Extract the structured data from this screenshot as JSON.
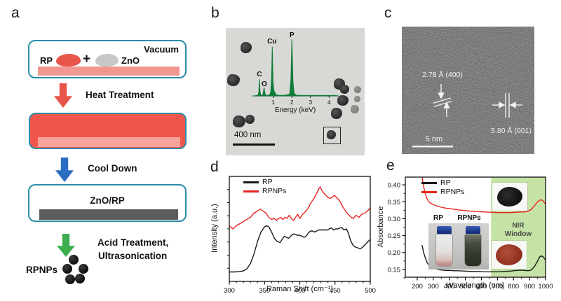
{
  "panels": {
    "a": {
      "label": "a",
      "vacuum": "Vacuum",
      "rp": "RP",
      "plus": "+",
      "zno": "ZnO",
      "step1": "Heat Treatment",
      "step2": "Cool Down",
      "box3": "ZnO/RP",
      "step3a": "Acid Treatment,",
      "step3b": "Ultrasonication",
      "product": "RPNPs"
    },
    "b": {
      "label": "b",
      "scalebar": "400 nm"
    },
    "c": {
      "label": "c",
      "spacing1": "2.78 Å (400)",
      "spacing2": "5.80 Å (001)",
      "scalebar": "5 nm"
    },
    "d": {
      "label": "d"
    },
    "e": {
      "label": "e",
      "nir_line1": "NIR",
      "nir_line2": "Window",
      "vial_left": "RP",
      "vial_right": "RPNPs"
    }
  },
  "colors": {
    "teal_border": "#2b8ca8",
    "red_fill": "#f0564c",
    "pink_slab": "#f0978f",
    "inner_slab": "#f7a39b",
    "gray_blob": "#c8c8c8",
    "dark_slab": "#5c5c5c",
    "red_arrow": "#e8564b",
    "blue_arrow": "#2b6dc0",
    "green_arrow": "#3eae4f",
    "eds_green": "#0f7d39",
    "nir_band": "#c4e3a4",
    "series_black": "#1a1a1a",
    "series_red": "#e8231f"
  },
  "chart_data": [
    {
      "id": "eds",
      "type": "line",
      "panel": "b",
      "xlabel": "Energy (keV)",
      "x_ticks": [
        1,
        2,
        3,
        4
      ],
      "xlim": [
        0,
        4.4
      ],
      "ylim": [
        0,
        95
      ],
      "peak_labels": [
        {
          "text": "C",
          "kev": 0.26
        },
        {
          "text": "O",
          "kev": 0.52
        },
        {
          "text": "Cu",
          "kev": 0.93
        },
        {
          "text": "P",
          "kev": 2.0
        }
      ],
      "series": [
        {
          "name": "EDS counts",
          "color": "#0f7d39",
          "points": [
            [
              0.08,
              0.5
            ],
            [
              0.18,
              0.8
            ],
            [
              0.23,
              6
            ],
            [
              0.26,
              26
            ],
            [
              0.29,
              8
            ],
            [
              0.33,
              1
            ],
            [
              0.44,
              1.2
            ],
            [
              0.48,
              7
            ],
            [
              0.51,
              13
            ],
            [
              0.55,
              5
            ],
            [
              0.6,
              0.8
            ],
            [
              0.78,
              1
            ],
            [
              0.86,
              5
            ],
            [
              0.91,
              25
            ],
            [
              0.95,
              77
            ],
            [
              0.99,
              22
            ],
            [
              1.04,
              8
            ],
            [
              1.1,
              5
            ],
            [
              1.16,
              1.5
            ],
            [
              1.35,
              0.8
            ],
            [
              1.6,
              0.8
            ],
            [
              1.78,
              2
            ],
            [
              1.88,
              2.5
            ],
            [
              1.95,
              25
            ],
            [
              2.0,
              88
            ],
            [
              2.06,
              22
            ],
            [
              2.12,
              4
            ],
            [
              2.25,
              1
            ],
            [
              2.6,
              0.7
            ],
            [
              3.0,
              0.7
            ],
            [
              3.5,
              0.7
            ],
            [
              4.0,
              0.7
            ],
            [
              4.4,
              0.7
            ]
          ]
        }
      ]
    },
    {
      "id": "raman",
      "type": "line",
      "panel": "d",
      "xlabel": "Raman Shift (cm⁻¹)",
      "ylabel": "Intensity (a.u.)",
      "xlim": [
        300,
        500
      ],
      "ylim": [
        0,
        1
      ],
      "x_ticks": [
        300,
        350,
        400,
        450,
        500
      ],
      "x_minor_step": 10,
      "legend_position": "top-left",
      "series": [
        {
          "name": "RP",
          "color": "#1a1a1a",
          "points": [
            [
              300,
              0.09
            ],
            [
              308,
              0.09
            ],
            [
              315,
              0.095
            ],
            [
              320,
              0.1
            ],
            [
              325,
              0.12
            ],
            [
              330,
              0.17
            ],
            [
              335,
              0.26
            ],
            [
              340,
              0.38
            ],
            [
              345,
              0.47
            ],
            [
              350,
              0.52
            ],
            [
              353,
              0.53
            ],
            [
              356,
              0.52
            ],
            [
              360,
              0.47
            ],
            [
              364,
              0.41
            ],
            [
              368,
              0.38
            ],
            [
              372,
              0.37
            ],
            [
              375,
              0.4
            ],
            [
              378,
              0.43
            ],
            [
              381,
              0.42
            ],
            [
              384,
              0.41
            ],
            [
              387,
              0.43
            ],
            [
              390,
              0.45
            ],
            [
              393,
              0.45
            ],
            [
              396,
              0.44
            ],
            [
              400,
              0.44
            ],
            [
              403,
              0.43
            ],
            [
              406,
              0.42
            ],
            [
              409,
              0.43
            ],
            [
              412,
              0.46
            ],
            [
              415,
              0.48
            ],
            [
              418,
              0.48
            ],
            [
              421,
              0.47
            ],
            [
              424,
              0.48
            ],
            [
              427,
              0.49
            ],
            [
              430,
              0.49
            ],
            [
              433,
              0.49
            ],
            [
              436,
              0.49
            ],
            [
              439,
              0.49
            ],
            [
              442,
              0.5
            ],
            [
              445,
              0.51
            ],
            [
              448,
              0.49
            ],
            [
              451,
              0.5
            ],
            [
              454,
              0.5
            ],
            [
              457,
              0.51
            ],
            [
              460,
              0.51
            ],
            [
              463,
              0.49
            ],
            [
              466,
              0.5
            ],
            [
              469,
              0.46
            ],
            [
              472,
              0.39
            ],
            [
              475,
              0.35
            ],
            [
              478,
              0.33
            ],
            [
              482,
              0.32
            ],
            [
              486,
              0.31
            ],
            [
              490,
              0.33
            ],
            [
              494,
              0.36
            ],
            [
              500,
              0.4
            ]
          ]
        },
        {
          "name": "RPNPs",
          "color": "#e8231f",
          "points": [
            [
              300,
              0.53
            ],
            [
              305,
              0.5
            ],
            [
              310,
              0.53
            ],
            [
              315,
              0.55
            ],
            [
              320,
              0.57
            ],
            [
              325,
              0.59
            ],
            [
              330,
              0.61
            ],
            [
              335,
              0.65
            ],
            [
              340,
              0.67
            ],
            [
              344,
              0.69
            ],
            [
              348,
              0.67
            ],
            [
              352,
              0.65
            ],
            [
              356,
              0.61
            ],
            [
              360,
              0.59
            ],
            [
              364,
              0.6
            ],
            [
              367,
              0.58
            ],
            [
              370,
              0.6
            ],
            [
              373,
              0.61
            ],
            [
              376,
              0.59
            ],
            [
              379,
              0.61
            ],
            [
              382,
              0.6
            ],
            [
              385,
              0.63
            ],
            [
              388,
              0.6
            ],
            [
              391,
              0.58
            ],
            [
              394,
              0.61
            ],
            [
              397,
              0.64
            ],
            [
              400,
              0.6
            ],
            [
              403,
              0.63
            ],
            [
              406,
              0.65
            ],
            [
              409,
              0.67
            ],
            [
              412,
              0.7
            ],
            [
              415,
              0.74
            ],
            [
              418,
              0.77
            ],
            [
              421,
              0.8
            ],
            [
              424,
              0.84
            ],
            [
              427,
              0.88
            ],
            [
              429,
              0.9
            ],
            [
              431,
              0.87
            ],
            [
              434,
              0.84
            ],
            [
              437,
              0.82
            ],
            [
              440,
              0.8
            ],
            [
              443,
              0.79
            ],
            [
              446,
              0.8
            ],
            [
              449,
              0.82
            ],
            [
              452,
              0.8
            ],
            [
              455,
              0.78
            ],
            [
              458,
              0.75
            ],
            [
              461,
              0.71
            ],
            [
              464,
              0.68
            ],
            [
              467,
              0.65
            ],
            [
              470,
              0.63
            ],
            [
              473,
              0.61
            ],
            [
              476,
              0.6
            ],
            [
              480,
              0.63
            ],
            [
              484,
              0.61
            ],
            [
              488,
              0.64
            ],
            [
              492,
              0.65
            ],
            [
              496,
              0.67
            ],
            [
              500,
              0.7
            ]
          ]
        }
      ]
    },
    {
      "id": "absorbance",
      "type": "line",
      "panel": "e",
      "xlabel": "Wavelength (nm)",
      "ylabel": "Absorbance",
      "xlim": [
        126,
        1000
      ],
      "ylim": [
        0.127,
        0.423
      ],
      "x_ticks": [
        200,
        300,
        400,
        500,
        600,
        700,
        800,
        900,
        1000
      ],
      "x_minor_step": 50,
      "y_ticks": [
        0.15,
        0.2,
        0.25,
        0.3,
        0.35,
        0.4
      ],
      "y_minor_step": 0.025,
      "legend_position": "top-left",
      "nir_window": {
        "from_nm": 660,
        "to_nm": 1000,
        "color": "#c4e3a4",
        "label": "NIR Window"
      },
      "series": [
        {
          "name": "RP",
          "color": "#1a1a1a",
          "points": [
            [
              230,
              0.222
            ],
            [
              240,
              0.2
            ],
            [
              250,
              0.185
            ],
            [
              260,
              0.172
            ],
            [
              270,
              0.164
            ],
            [
              280,
              0.159
            ],
            [
              290,
              0.156
            ],
            [
              300,
              0.154
            ],
            [
              320,
              0.151
            ],
            [
              340,
              0.149
            ],
            [
              360,
              0.148
            ],
            [
              380,
              0.147
            ],
            [
              400,
              0.147
            ],
            [
              430,
              0.146
            ],
            [
              460,
              0.146
            ],
            [
              500,
              0.145
            ],
            [
              540,
              0.144
            ],
            [
              580,
              0.144
            ],
            [
              620,
              0.143
            ],
            [
              660,
              0.143
            ],
            [
              700,
              0.143
            ],
            [
              740,
              0.144
            ],
            [
              780,
              0.145
            ],
            [
              820,
              0.147
            ],
            [
              850,
              0.148
            ],
            [
              870,
              0.147
            ],
            [
              890,
              0.146
            ],
            [
              910,
              0.148
            ],
            [
              930,
              0.158
            ],
            [
              950,
              0.175
            ],
            [
              965,
              0.188
            ],
            [
              975,
              0.19
            ],
            [
              985,
              0.187
            ],
            [
              1000,
              0.178
            ]
          ]
        },
        {
          "name": "RPNPs",
          "color": "#e8231f",
          "points": [
            [
              230,
              0.425
            ],
            [
              235,
              0.41
            ],
            [
              240,
              0.396
            ],
            [
              245,
              0.384
            ],
            [
              250,
              0.374
            ],
            [
              260,
              0.36
            ],
            [
              270,
              0.352
            ],
            [
              280,
              0.347
            ],
            [
              290,
              0.344
            ],
            [
              300,
              0.342
            ],
            [
              320,
              0.338
            ],
            [
              340,
              0.335
            ],
            [
              360,
              0.333
            ],
            [
              380,
              0.331
            ],
            [
              400,
              0.33
            ],
            [
              430,
              0.328
            ],
            [
              460,
              0.326
            ],
            [
              500,
              0.324
            ],
            [
              540,
              0.322
            ],
            [
              580,
              0.321
            ],
            [
              620,
              0.32
            ],
            [
              660,
              0.319
            ],
            [
              700,
              0.318
            ],
            [
              740,
              0.318
            ],
            [
              780,
              0.318
            ],
            [
              820,
              0.319
            ],
            [
              850,
              0.32
            ],
            [
              870,
              0.32
            ],
            [
              890,
              0.322
            ],
            [
              910,
              0.327
            ],
            [
              930,
              0.338
            ],
            [
              950,
              0.35
            ],
            [
              965,
              0.355
            ],
            [
              975,
              0.356
            ],
            [
              985,
              0.352
            ],
            [
              1000,
              0.343
            ]
          ]
        }
      ]
    }
  ]
}
